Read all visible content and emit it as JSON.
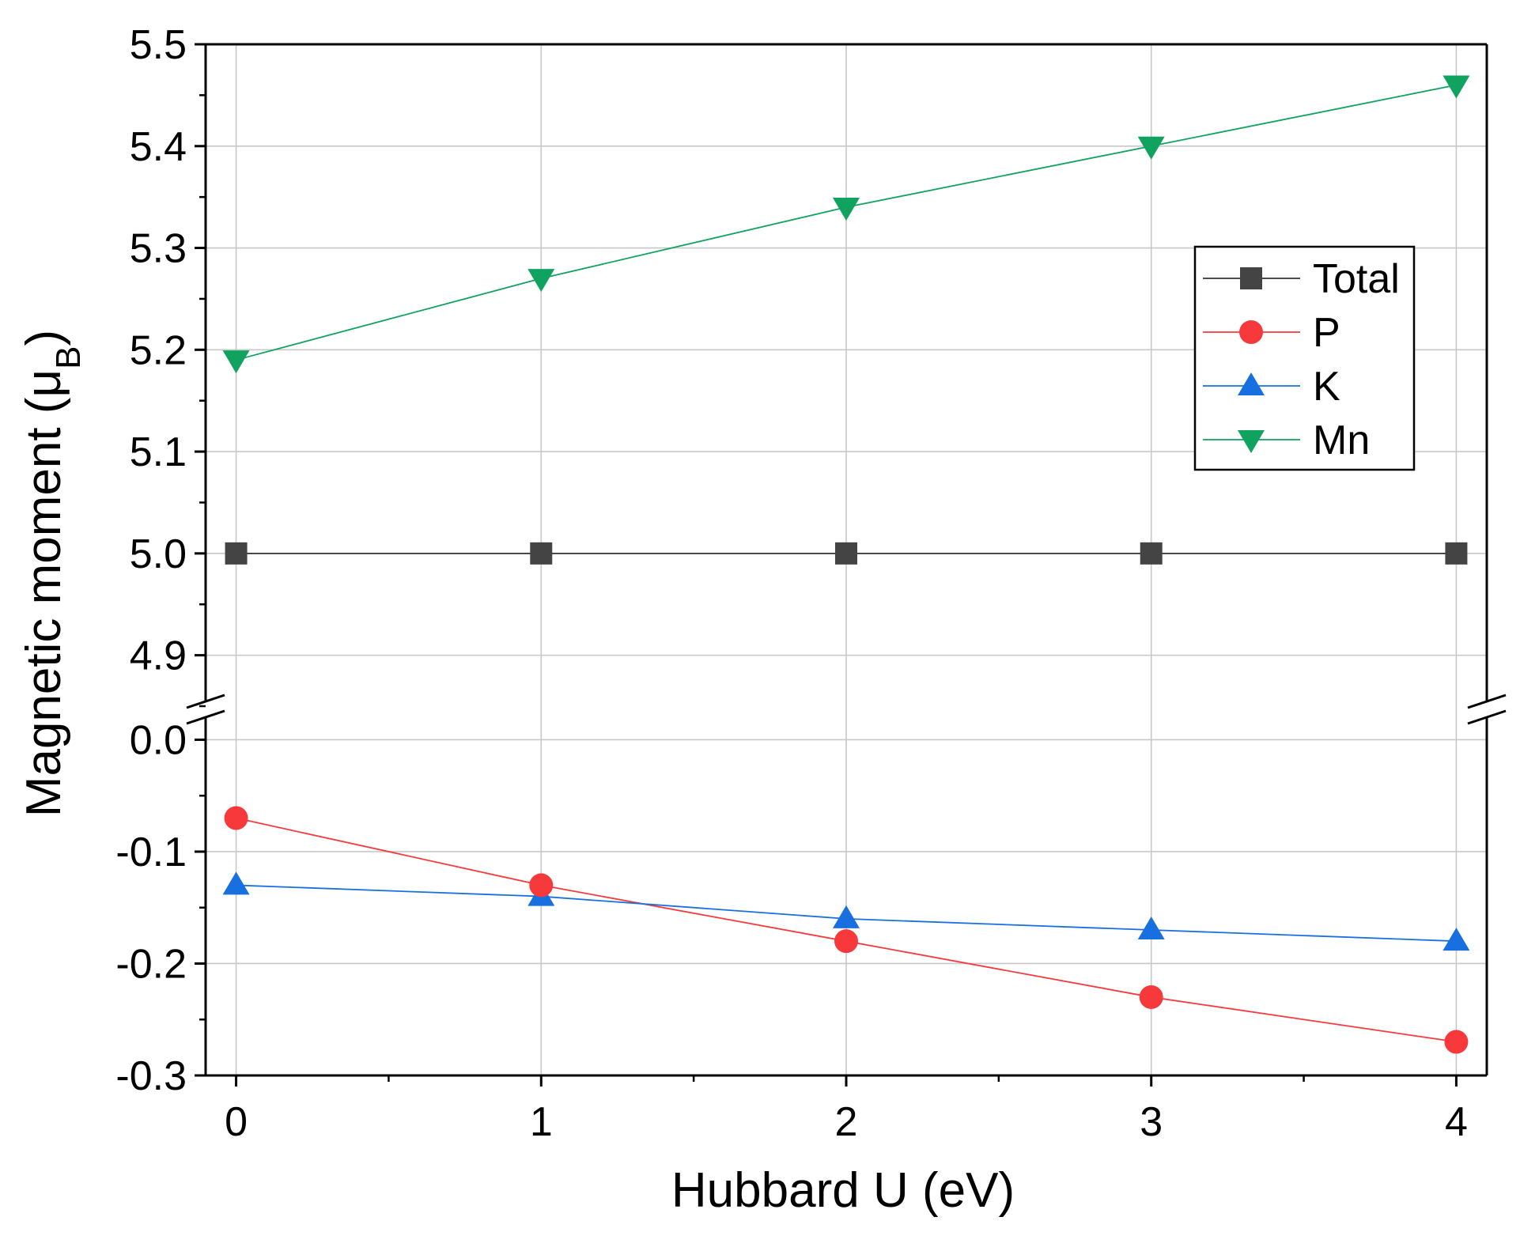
{
  "chart_data": {
    "type": "line",
    "title": "",
    "xlabel": "Hubbard U (eV)",
    "ylabel": "Magnetic moment (μ",
    "ylabel_sub": "B",
    "ylabel_close": ")",
    "x": [
      0,
      1,
      2,
      3,
      4
    ],
    "x_ticks": [
      "0",
      "1",
      "2",
      "3",
      "4"
    ],
    "xlim": [
      -0.1,
      4.1
    ],
    "axis_break": true,
    "upper_ylim": [
      4.85,
      5.5
    ],
    "upper_y_ticks": [
      "4.9",
      "5.0",
      "5.1",
      "5.2",
      "5.3",
      "5.4",
      "5.5"
    ],
    "lower_ylim": [
      -0.3,
      0.03
    ],
    "lower_y_ticks": [
      "-0.3",
      "-0.2",
      "-0.1",
      "0.0"
    ],
    "grid": true,
    "legend_position": "upper-right",
    "series": [
      {
        "name": "Total",
        "marker": "square",
        "color": "#444444",
        "line_color": "#333333",
        "panel": "upper",
        "values": [
          5.0,
          5.0,
          5.0,
          5.0,
          5.0
        ]
      },
      {
        "name": "P",
        "marker": "circle",
        "color": "#f8393c",
        "line_color": "#f8393c",
        "panel": "lower",
        "values": [
          -0.07,
          -0.13,
          -0.18,
          -0.23,
          -0.27
        ]
      },
      {
        "name": "K",
        "marker": "triangle-up",
        "color": "#1870e0",
        "line_color": "#1870e0",
        "panel": "lower",
        "values": [
          -0.13,
          -0.14,
          -0.16,
          -0.17,
          -0.18
        ]
      },
      {
        "name": "Mn",
        "marker": "triangle-down",
        "color": "#10a35f",
        "line_color": "#10a35f",
        "panel": "upper",
        "values": [
          5.19,
          5.27,
          5.34,
          5.4,
          5.46
        ]
      }
    ]
  }
}
